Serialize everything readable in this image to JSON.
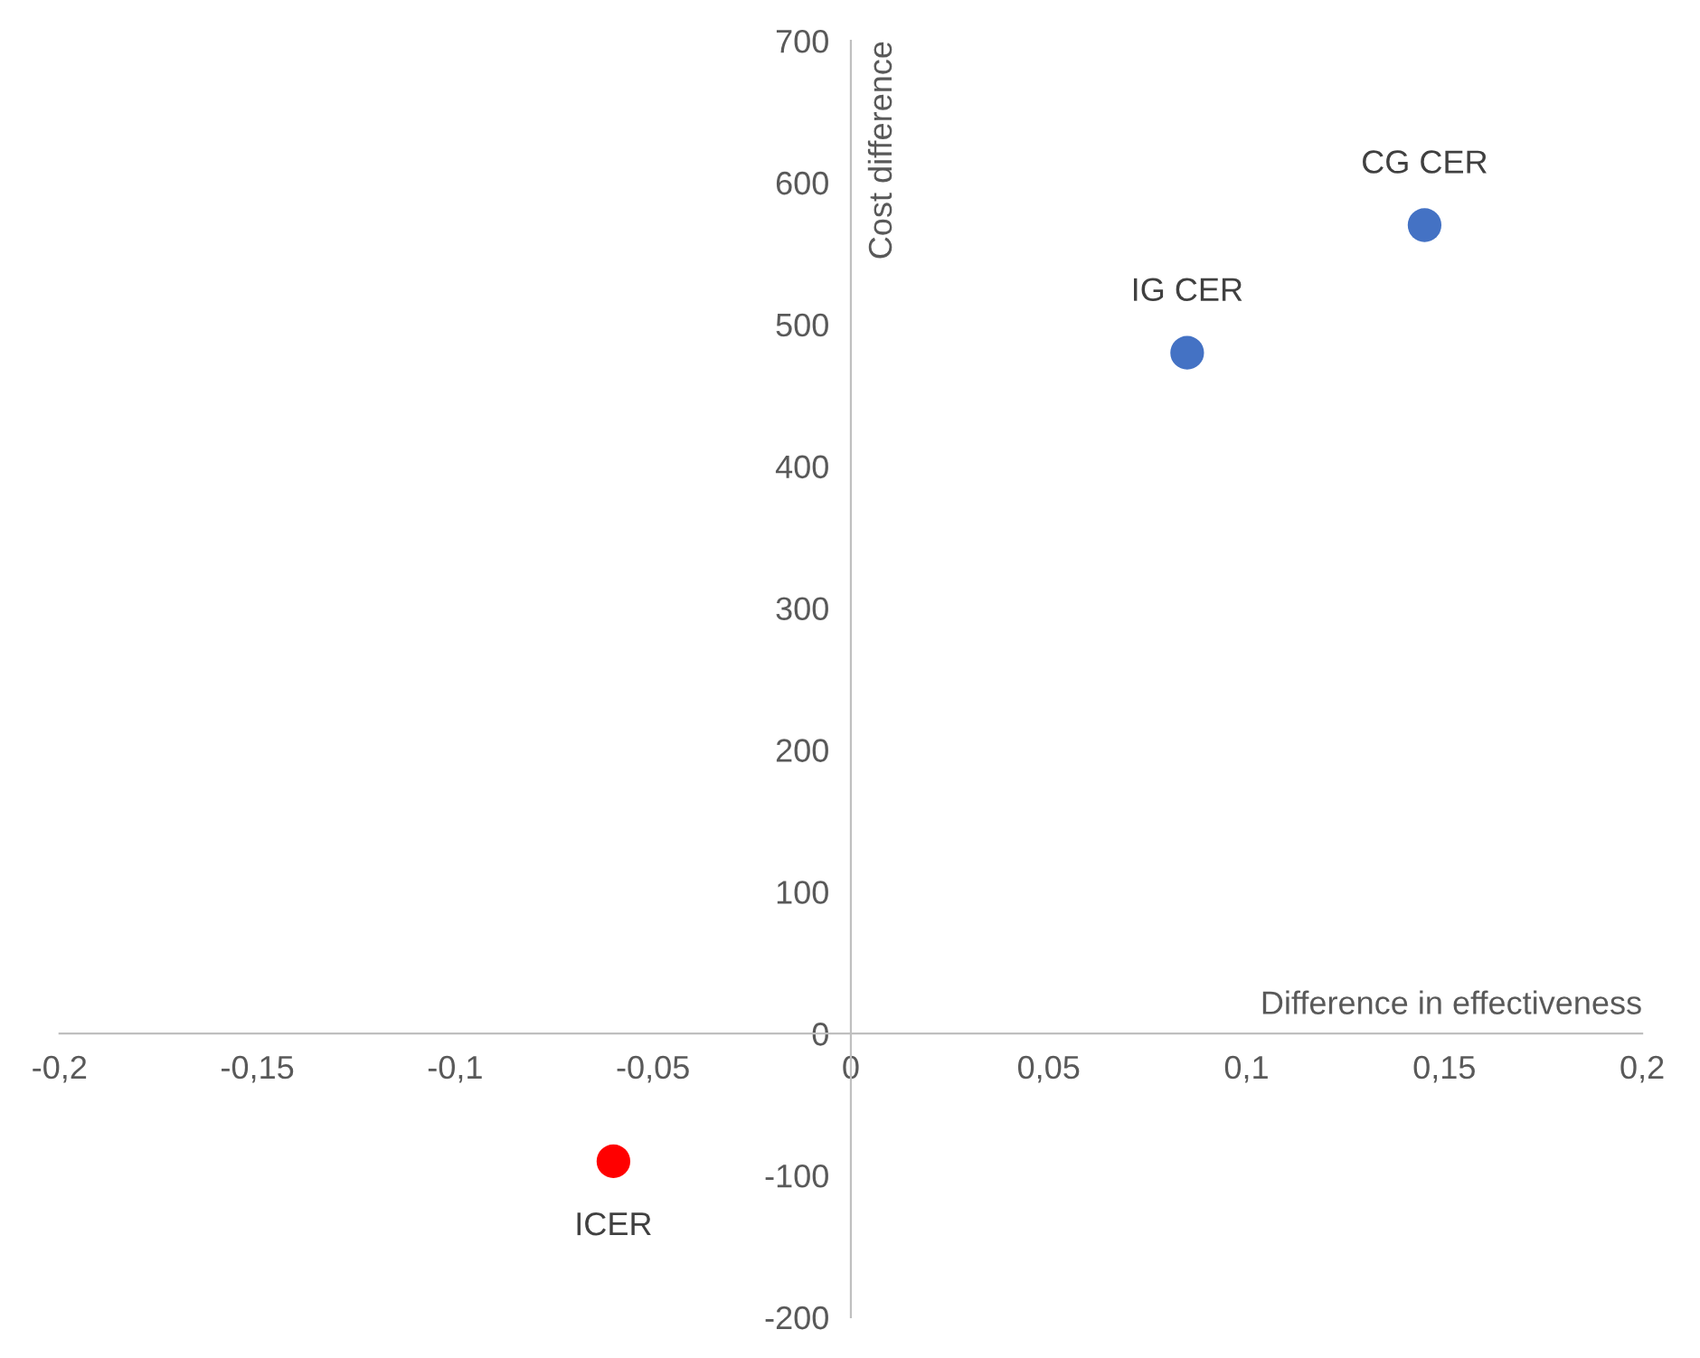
{
  "chart_data": {
    "type": "scatter",
    "xlabel": "Difference in effectiveness",
    "ylabel": "Cost difference",
    "x": [
      0.085,
      0.145,
      -0.06
    ],
    "values": [
      480,
      570,
      -90
    ],
    "colors": [
      "#4472c4",
      "#4472c4",
      "#ff0000"
    ],
    "marker": "circle",
    "annotations": [
      {
        "text": "IG CER",
        "x": 0.085,
        "y": 480
      },
      {
        "text": "CG CER",
        "x": 0.145,
        "y": 570
      },
      {
        "text": "ICER",
        "x": -0.06,
        "y": -90
      }
    ],
    "xlim": [
      -0.2,
      0.2
    ],
    "xticks": [
      {
        "value": -0.2,
        "label": "-0,2"
      },
      {
        "value": -0.15,
        "label": "-0,15"
      },
      {
        "value": -0.1,
        "label": "-0,1"
      },
      {
        "value": -0.05,
        "label": "-0,05"
      },
      0,
      {
        "value": 0.05,
        "label": "0,05"
      },
      {
        "value": 0.1,
        "label": "0,1"
      },
      {
        "value": 0.15,
        "label": "0,15"
      },
      {
        "value": 0.2,
        "label": "0,2"
      }
    ],
    "ylim": [
      -200,
      700
    ],
    "yticks": [
      -200,
      -100,
      0,
      100,
      200,
      300,
      400,
      500,
      600,
      700
    ],
    "grid": false
  }
}
